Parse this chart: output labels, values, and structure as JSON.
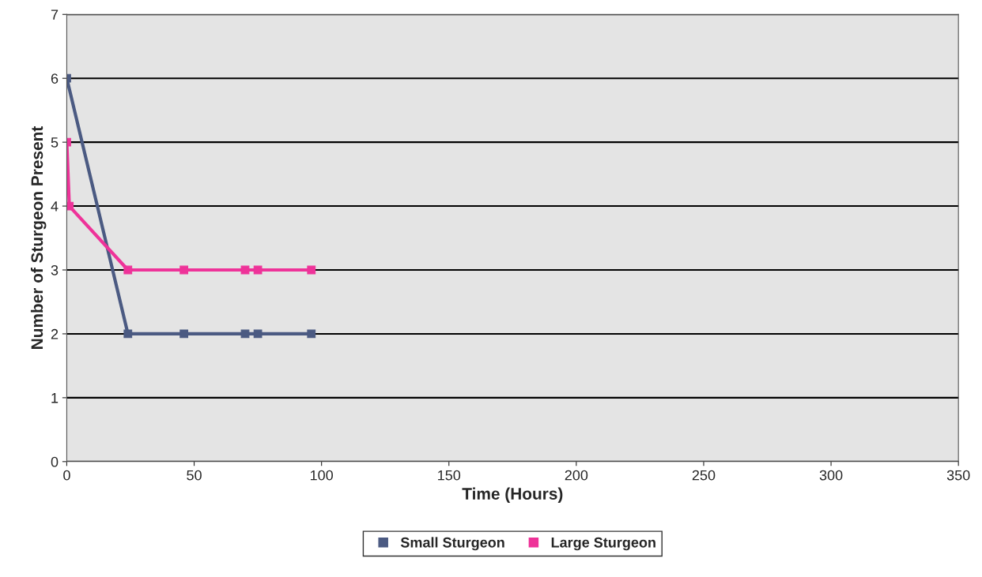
{
  "chart_data": {
    "type": "line",
    "xlabel": "Time (Hours)",
    "ylabel": "Number of Sturgeon Present",
    "xlim": [
      0,
      350
    ],
    "xticks": [
      0,
      50,
      100,
      150,
      200,
      250,
      300,
      350
    ],
    "ylim": [
      0,
      7
    ],
    "yticks": [
      0,
      1,
      2,
      3,
      4,
      5,
      6,
      7
    ],
    "grid": "y",
    "legend": "bottom",
    "marker": "square",
    "line_style": "solid",
    "series": [
      {
        "name": "Small Sturgeon",
        "color": "#4b5a82",
        "x": [
          0,
          24,
          46,
          70,
          75,
          96
        ],
        "values": [
          6,
          2,
          2,
          2,
          2,
          2
        ]
      },
      {
        "name": "Large Sturgeon",
        "color": "#ee3399",
        "x": [
          0,
          1,
          24,
          46,
          70,
          75,
          96
        ],
        "values": [
          5,
          4,
          3,
          3,
          3,
          3,
          3
        ]
      }
    ]
  }
}
